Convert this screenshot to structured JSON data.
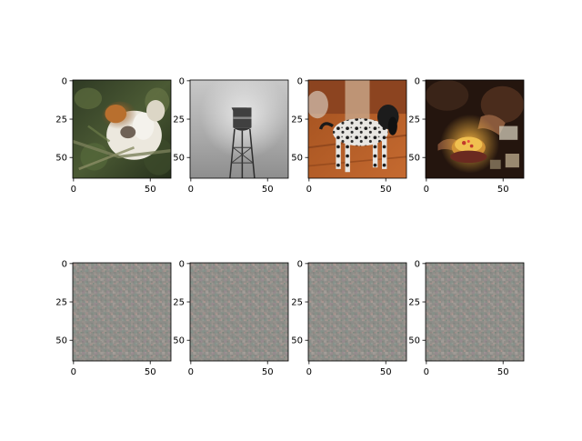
{
  "figure": {
    "background": "#ffffff"
  },
  "chart_data": [
    {
      "type": "image",
      "content": "calico cat perched among green foliage",
      "palette": [
        "#2f3a24",
        "#4b5a34",
        "#c07a35",
        "#f2f0ea"
      ],
      "xlim": [
        0,
        63
      ],
      "ylim": [
        63,
        0
      ],
      "xticks": [
        0,
        50
      ],
      "yticks": [
        0,
        25,
        50
      ],
      "xtick_labels": [
        "0",
        "50"
      ],
      "ytick_labels": [
        "0",
        "25",
        "50"
      ]
    },
    {
      "type": "image",
      "content": "grayscale water tower against a gray sky",
      "palette": [
        "#cfcfcf",
        "#8a8a8a",
        "#3b3b3b"
      ],
      "xlim": [
        0,
        63
      ],
      "ylim": [
        63,
        0
      ],
      "xticks": [
        0,
        50
      ],
      "yticks": [
        0,
        25,
        50
      ],
      "xtick_labels": [
        "0",
        "50"
      ],
      "ytick_labels": [
        "0",
        "25",
        "50"
      ]
    },
    {
      "type": "image",
      "content": "black and white spotted dog standing on a wooden floor",
      "palette": [
        "#b35a2a",
        "#7a3516",
        "#e6e3de",
        "#1a1a1a"
      ],
      "xlim": [
        0,
        63
      ],
      "ylim": [
        63,
        0
      ],
      "xticks": [
        0,
        50
      ],
      "yticks": [
        0,
        25,
        50
      ],
      "xtick_labels": [
        "0",
        "50"
      ],
      "ytick_labels": [
        "0",
        "25",
        "50"
      ]
    },
    {
      "type": "image",
      "content": "dark scene with a decorated cake and hands",
      "palette": [
        "#2a1a12",
        "#5a3b2a",
        "#e0a440",
        "#c0392b"
      ],
      "xlim": [
        0,
        63
      ],
      "ylim": [
        63,
        0
      ],
      "xticks": [
        0,
        50
      ],
      "yticks": [
        0,
        25,
        50
      ],
      "xtick_labels": [
        "0",
        "50"
      ],
      "ytick_labels": [
        "0",
        "25",
        "50"
      ]
    },
    {
      "type": "image",
      "content": "gray noisy generated texture",
      "palette": [
        "#8e8d88",
        "#9a8f8a",
        "#868f88",
        "#a09a95"
      ],
      "xlim": [
        0,
        63
      ],
      "ylim": [
        63,
        0
      ],
      "xticks": [
        0,
        50
      ],
      "yticks": [
        0,
        25,
        50
      ],
      "xtick_labels": [
        "0",
        "50"
      ],
      "ytick_labels": [
        "0",
        "25",
        "50"
      ]
    },
    {
      "type": "image",
      "content": "gray noisy generated texture",
      "palette": [
        "#8e8d88",
        "#9a8f8a",
        "#868f88",
        "#a09a95"
      ],
      "xlim": [
        0,
        63
      ],
      "ylim": [
        63,
        0
      ],
      "xticks": [
        0,
        50
      ],
      "yticks": [
        0,
        25,
        50
      ],
      "xtick_labels": [
        "0",
        "50"
      ],
      "ytick_labels": [
        "0",
        "25",
        "50"
      ]
    },
    {
      "type": "image",
      "content": "gray noisy generated texture",
      "palette": [
        "#8e8d88",
        "#9a8f8a",
        "#868f88",
        "#a09a95"
      ],
      "xlim": [
        0,
        63
      ],
      "ylim": [
        63,
        0
      ],
      "xticks": [
        0,
        50
      ],
      "yticks": [
        0,
        25,
        50
      ],
      "xtick_labels": [
        "0",
        "50"
      ],
      "ytick_labels": [
        "0",
        "25",
        "50"
      ]
    },
    {
      "type": "image",
      "content": "gray noisy generated texture",
      "palette": [
        "#8e8d88",
        "#9a8f8a",
        "#868f88",
        "#a09a95"
      ],
      "xlim": [
        0,
        63
      ],
      "ylim": [
        63,
        0
      ],
      "xticks": [
        0,
        50
      ],
      "yticks": [
        0,
        25,
        50
      ],
      "xtick_labels": [
        "0",
        "50"
      ],
      "ytick_labels": [
        "0",
        "25",
        "50"
      ]
    }
  ]
}
